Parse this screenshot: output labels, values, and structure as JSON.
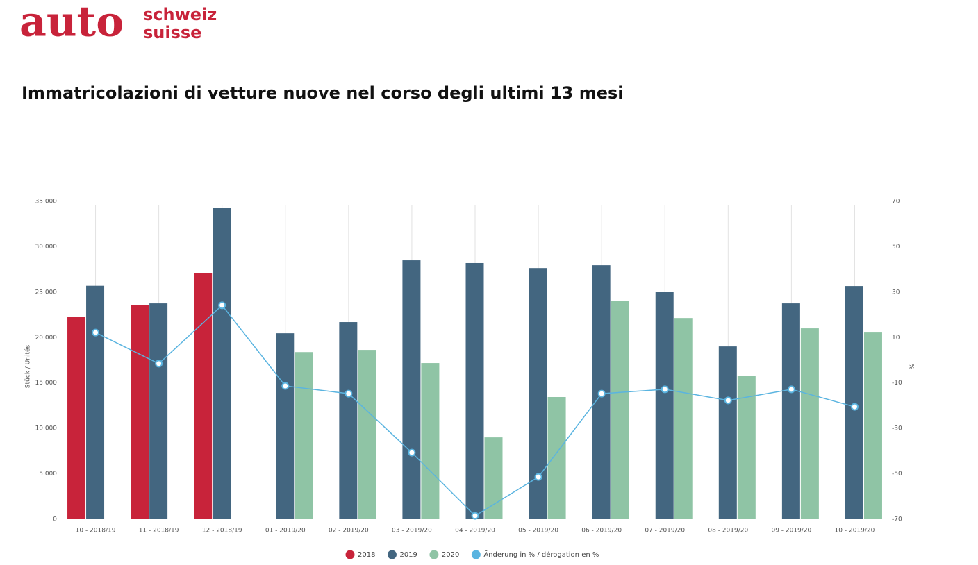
{
  "header": {
    "logo": "auto",
    "logo_line1": "schweiz",
    "logo_line2": "suisse"
  },
  "chart_data": {
    "type": "bar",
    "title": "Immatricolazioni di vetture nuove nel corso degli ultimi 13 mesi",
    "y_label": "Stück / Unités",
    "y2_label": "%",
    "categories": [
      "10 - 2018/19",
      "11 - 2018/19",
      "12 - 2018/19",
      "01 - 2019/20",
      "02 - 2019/20",
      "03 - 2019/20",
      "04 - 2019/20",
      "05 - 2019/20",
      "06 - 2019/20",
      "07 - 2019/20",
      "08 - 2019/20",
      "09 - 2019/20",
      "10 - 2019/20"
    ],
    "series": [
      {
        "name": "2018",
        "type": "bar",
        "color": "#c8233a",
        "values": [
          22300,
          23600,
          27100,
          null,
          null,
          null,
          null,
          null,
          null,
          null,
          null,
          null,
          null
        ]
      },
      {
        "name": "2019",
        "type": "bar",
        "color": "#436680",
        "values": [
          25700,
          23760,
          34300,
          20470,
          21700,
          28500,
          28200,
          27650,
          27960,
          25060,
          19020,
          23760,
          25670
        ]
      },
      {
        "name": "2020",
        "type": "bar",
        "color": "#8fc4a5",
        "values": [
          null,
          null,
          null,
          18400,
          18640,
          17190,
          9010,
          13450,
          24060,
          22150,
          15810,
          21010,
          20550
        ]
      },
      {
        "name": "Änderung in % / dérogation en %",
        "type": "line",
        "axis": "y2",
        "color": "#5ab4e0",
        "values": [
          12.2,
          -1.5,
          24.2,
          -11.3,
          -14.7,
          -40.7,
          -68.5,
          -51.4,
          -14.7,
          -12.8,
          -17.7,
          -12.8,
          -20.5
        ]
      }
    ],
    "ylim": [
      0,
      35000
    ],
    "yticks": [
      0,
      {
        "value": 5000,
        "label": "5 000"
      },
      {
        "value": 10000,
        "label": "10 000"
      },
      {
        "value": 15000,
        "label": "15 000"
      },
      {
        "value": 20000,
        "label": "20 000"
      },
      {
        "value": 25000,
        "label": "25 000"
      },
      {
        "value": 30000,
        "label": "30 000"
      },
      {
        "value": 35000,
        "label": "35 000"
      }
    ],
    "y2lim": [
      -70,
      70
    ],
    "y2ticks": [
      -70,
      -50,
      -30,
      -10,
      10,
      30,
      50,
      70
    ],
    "grid": true,
    "legend": "bottom"
  }
}
